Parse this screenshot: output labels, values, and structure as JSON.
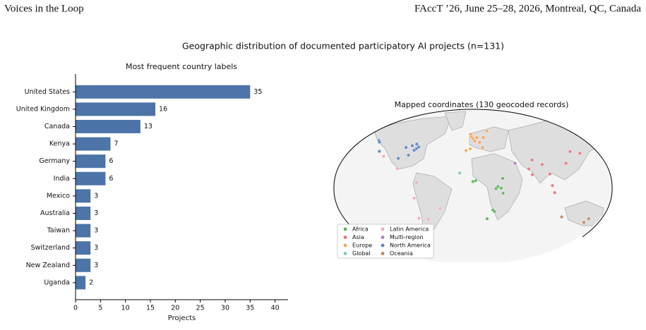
{
  "header": {
    "left": "Voices in the Loop",
    "right": "FAccT ’26, June 25–28, 2026, Montreal, QC, Canada"
  },
  "figure_title": "Geographic distribution of documented participatory AI projects (n=131)",
  "chart_data": [
    {
      "type": "bar",
      "orientation": "horizontal",
      "title": "Most frequent country labels",
      "x_label": "Projects",
      "categories": [
        "United States",
        "United Kingdom",
        "Canada",
        "Kenya",
        "Germany",
        "India",
        "Mexico",
        "Australia",
        "Taiwan",
        "Switzerland",
        "New Zealand",
        "Uganda"
      ],
      "values": [
        35,
        16,
        13,
        7,
        6,
        6,
        3,
        3,
        3,
        3,
        3,
        2
      ],
      "color": "#4c74a8",
      "xlim": [
        0,
        42.6
      ],
      "xticks": [
        0,
        5,
        10,
        15,
        20,
        25,
        30,
        35,
        40
      ]
    },
    {
      "type": "map",
      "title": "Mapped coordinates (130 geocoded records)",
      "xlim": [
        -180,
        180
      ],
      "ylim": [
        -90,
        90
      ],
      "series": [
        {
          "name": "Africa",
          "color": "#5fb35f",
          "x": [
            36.8,
            32.6,
            3.4,
            -0.2,
            28,
            18.4,
            39.3,
            38.7,
            30.1,
            25.9
          ],
          "y": [
            -1.3,
            0.3,
            6.5,
            5.6,
            -26.2,
            -33.9,
            -6.8,
            9,
            -1.9,
            -24.6
          ]
        },
        {
          "name": "Asia",
          "color": "#e8747c",
          "x": [
            77.2,
            72.9,
            77.6,
            121.5,
            139.7,
            126.9,
            103.8,
            90.4,
            100.5,
            106.8
          ],
          "y": [
            28.6,
            19.1,
            13,
            25,
            35.7,
            37.6,
            1.35,
            23.8,
            13.7,
            -6.2
          ]
        },
        {
          "name": "Europe",
          "color": "#f2a65a",
          "x": [
            -0.1,
            -2.2,
            2.35,
            13.4,
            8.5,
            4.9,
            -3.2,
            12.5,
            -3.7,
            18,
            -9.1
          ],
          "y": [
            51.5,
            53.5,
            48.9,
            52.5,
            47.4,
            52.4,
            55.9,
            41.9,
            40.4,
            59.3,
            38.7
          ]
        },
        {
          "name": "Global",
          "color": "#7fc8c0",
          "x": [
            -17.4
          ],
          "y": [
            14.7
          ]
        },
        {
          "name": "Latin America",
          "color": "#f4a6c0",
          "x": [
            -99.1,
            -117,
            -58.4,
            -70.6,
            -74,
            -43.2,
            -77
          ],
          "y": [
            19.4,
            32.5,
            -34.6,
            -33.4,
            4.7,
            -22.9,
            -12
          ]
        },
        {
          "name": "Multi-region",
          "color": "#b07cc6",
          "x": [
            55
          ],
          "y": [
            25
          ]
        },
        {
          "name": "North America",
          "color": "#5b84c4",
          "x": [
            -122.4,
            -87.6,
            -74,
            -71,
            -77,
            -79.4,
            -73.6,
            -123.1,
            -84.4,
            -97.7,
            -122.3
          ],
          "y": [
            37.8,
            41.9,
            40.7,
            42.4,
            38.9,
            43.7,
            45.5,
            49.3,
            33.7,
            30.3,
            47.6
          ]
        },
        {
          "name": "Oceania",
          "color": "#c0865a",
          "x": [
            151.2,
            144.9,
            174.8,
            174.8,
            115.9
          ],
          "y": [
            -33.9,
            -37.8,
            -41.3,
            -36.8,
            -32
          ]
        }
      ]
    }
  ]
}
